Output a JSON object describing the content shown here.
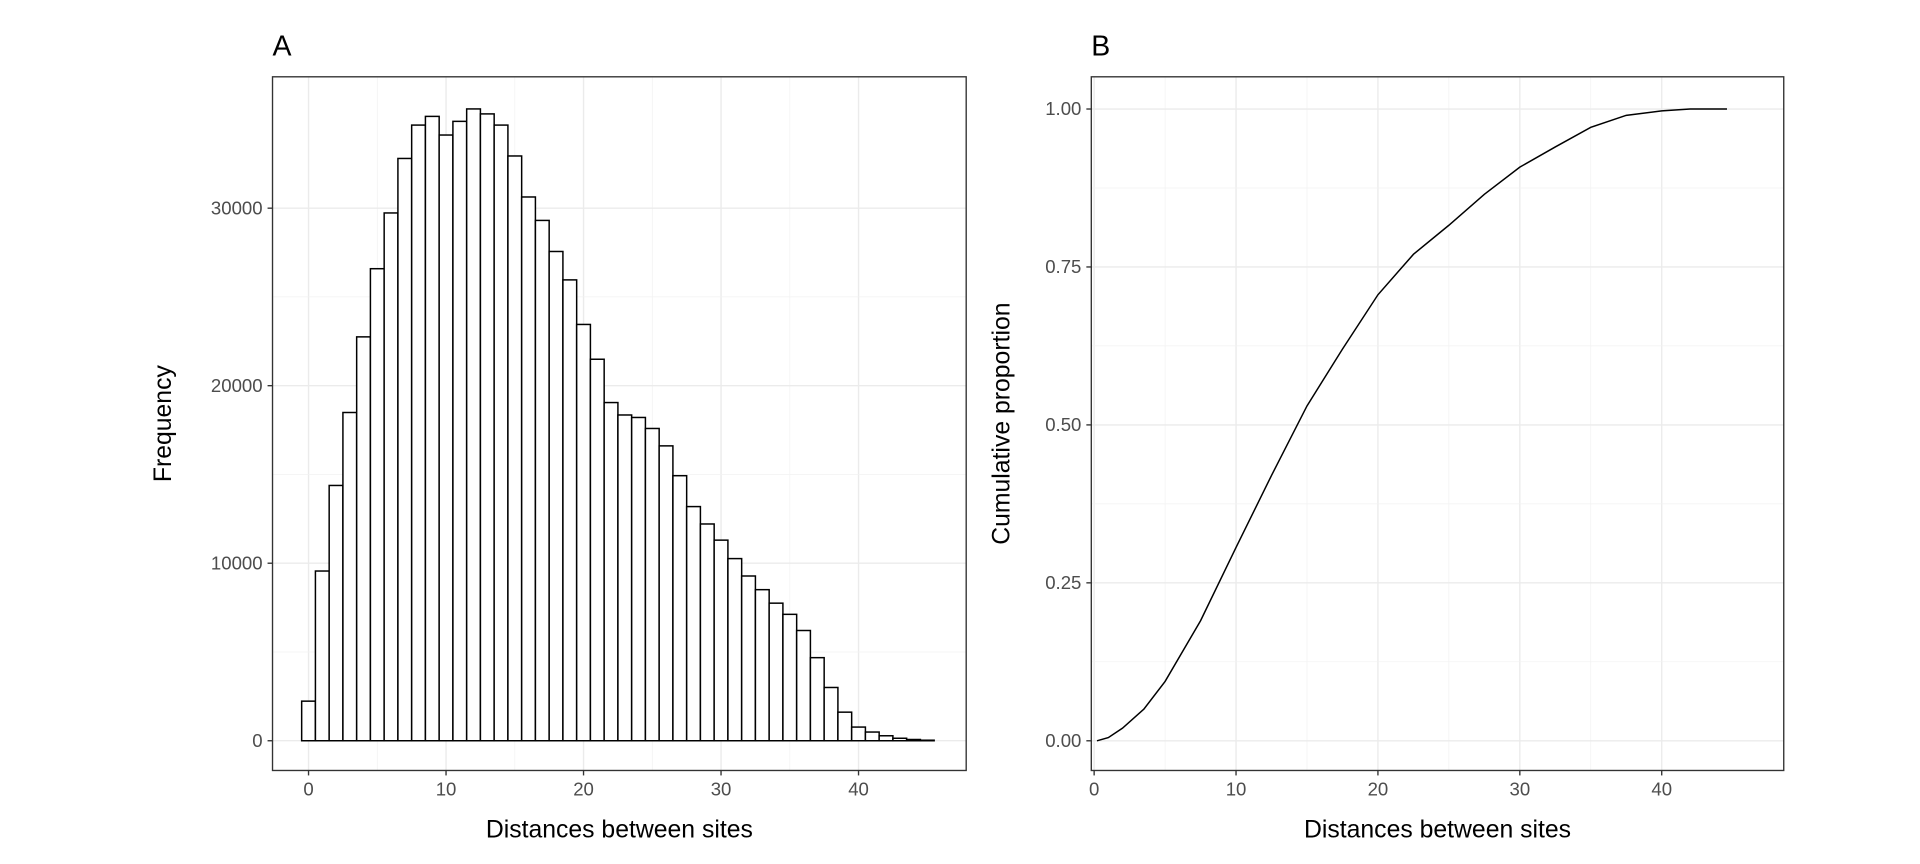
{
  "chart_data": [
    {
      "type": "histogram",
      "title": "A",
      "xlabel": "Distances between sites",
      "ylabel": "Frequency",
      "bins": [
        -0.5,
        0.5,
        1.5,
        2.5,
        3.5,
        4.5,
        5.5,
        6.5,
        7.5,
        8.5,
        9.5,
        10.5,
        11.5,
        12.5,
        13.5,
        14.5,
        15.5,
        16.5,
        17.5,
        18.5,
        19.5,
        20.5,
        21.5,
        22.5,
        23.5,
        24.5,
        25.5,
        26.5,
        27.5,
        28.5,
        29.5,
        30.5,
        31.5,
        32.5,
        33.5,
        34.5,
        35.5,
        36.5,
        37.5,
        38.5,
        39.5,
        40.5,
        41.5,
        42.5,
        43.5,
        44.5,
        45.5
      ],
      "values": [
        2230,
        9560,
        14380,
        18490,
        22750,
        26590,
        29730,
        32800,
        34680,
        35170,
        34120,
        34890,
        35590,
        35310,
        34680,
        32940,
        30630,
        29310,
        27560,
        25960,
        23450,
        21490,
        19050,
        18350,
        18210,
        17590,
        16610,
        14930,
        13190,
        12210,
        11300,
        10260,
        9280,
        8510,
        7750,
        7120,
        6210,
        4680,
        3000,
        1610,
        770,
        490,
        280,
        140,
        70,
        30
      ],
      "color": "#ffffff",
      "edge_color": "#000000",
      "xlim": [
        -2.62,
        47.83
      ],
      "ylim": [
        -1675,
        37400
      ],
      "xticks": [
        0,
        10,
        20,
        30,
        40
      ],
      "yticks": [
        0,
        10000,
        20000,
        30000
      ],
      "grid": true
    },
    {
      "type": "line",
      "title": "B",
      "xlabel": "Distances between sites",
      "ylabel": "Cumulative proportion",
      "x": [
        0.2,
        1,
        2,
        3.5,
        5,
        7.5,
        10,
        12.5,
        15,
        17.5,
        20,
        22.5,
        25,
        27.5,
        30,
        32.5,
        35,
        37.5,
        40,
        42,
        44.6
      ],
      "values": [
        0,
        0.005,
        0.02,
        0.05,
        0.094,
        0.19,
        0.306,
        0.42,
        0.53,
        0.62,
        0.706,
        0.77,
        0.816,
        0.865,
        0.908,
        0.94,
        0.971,
        0.99,
        0.997,
        1.0,
        1.0
      ],
      "color": "#000000",
      "xlim": [
        -0.2,
        48.6
      ],
      "ylim": [
        -0.047,
        1.051
      ],
      "xticks": [
        0,
        10,
        20,
        30,
        40
      ],
      "yticks": [
        {
          "value": 0,
          "label": "0.00"
        },
        {
          "value": 0.25,
          "label": "0.25"
        },
        {
          "value": 0.5,
          "label": "0.50"
        },
        {
          "value": 0.75,
          "label": "0.75"
        },
        {
          "value": 1,
          "label": "1.00"
        }
      ],
      "grid": true
    }
  ]
}
